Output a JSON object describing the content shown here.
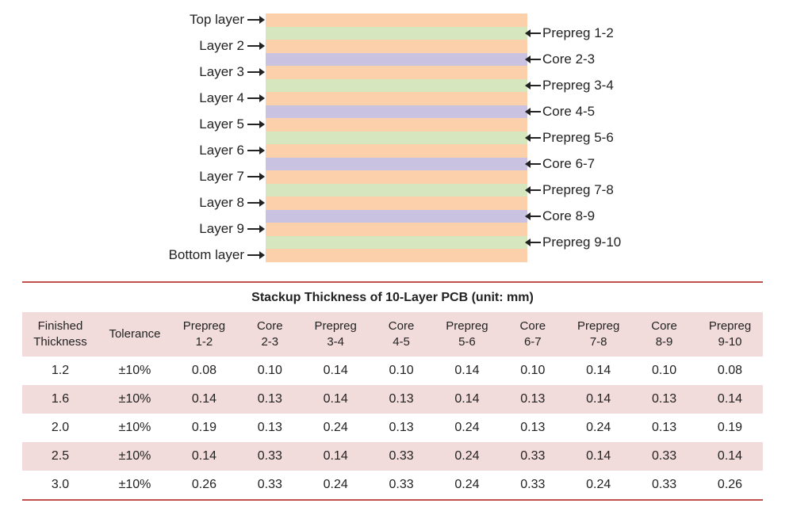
{
  "stackup": {
    "left_labels": [
      "Top layer",
      "Layer 2",
      "Layer 3",
      "Layer 4",
      "Layer 5",
      "Layer 6",
      "Layer 7",
      "Layer 8",
      "Layer 9",
      "Bottom layer"
    ],
    "right_labels": [
      "Prepreg 1-2",
      "Core 2-3",
      "Prepreg 3-4",
      "Core 4-5",
      "Prepreg 5-6",
      "Core 6-7",
      "Prepreg 7-8",
      "Core 8-9",
      "Prepreg 9-10"
    ],
    "colors": {
      "copper": "#fdd0ac",
      "prepreg": "#d6e6be",
      "core": "#c9c2e0"
    }
  },
  "table": {
    "title": "Stackup Thickness of 10-Layer PCB (unit: mm)",
    "headers": [
      [
        "Finished",
        "Thickness"
      ],
      [
        "Tolerance"
      ],
      [
        "Prepreg",
        "1-2"
      ],
      [
        "Core",
        "2-3"
      ],
      [
        "Prepreg",
        "3-4"
      ],
      [
        "Core",
        "4-5"
      ],
      [
        "Prepreg",
        "5-6"
      ],
      [
        "Core",
        "6-7"
      ],
      [
        "Prepreg",
        "7-8"
      ],
      [
        "Core",
        "8-9"
      ],
      [
        "Prepreg",
        "9-10"
      ]
    ],
    "rows": [
      [
        "1.2",
        "±10%",
        "0.08",
        "0.10",
        "0.14",
        "0.10",
        "0.14",
        "0.10",
        "0.14",
        "0.10",
        "0.08"
      ],
      [
        "1.6",
        "±10%",
        "0.14",
        "0.13",
        "0.14",
        "0.13",
        "0.14",
        "0.13",
        "0.14",
        "0.13",
        "0.14"
      ],
      [
        "2.0",
        "±10%",
        "0.19",
        "0.13",
        "0.24",
        "0.13",
        "0.24",
        "0.13",
        "0.24",
        "0.13",
        "0.19"
      ],
      [
        "2.5",
        "±10%",
        "0.14",
        "0.33",
        "0.14",
        "0.33",
        "0.24",
        "0.33",
        "0.14",
        "0.33",
        "0.14"
      ],
      [
        "3.0",
        "±10%",
        "0.26",
        "0.33",
        "0.24",
        "0.33",
        "0.24",
        "0.33",
        "0.24",
        "0.33",
        "0.26"
      ]
    ],
    "accent_color": "#c0504d",
    "stripe_color": "#f2dcdb"
  }
}
